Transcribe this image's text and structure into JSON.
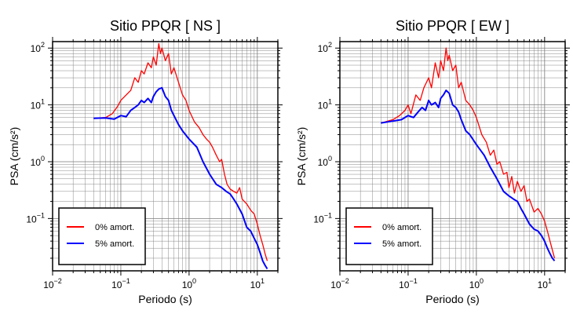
{
  "chart_data": [
    {
      "type": "line",
      "title": "Sitio PPQR [ NS ]",
      "xlabel": "Periodo (s)",
      "ylabel": "PSA (cm/s²)",
      "xscale": "log",
      "yscale": "log",
      "xlim": [
        0.01,
        20
      ],
      "ylim": [
        0.012,
        130
      ],
      "grid": true,
      "legend_position": "bottom-left",
      "x_ticks": [
        {
          "value": 0.01,
          "base": "10",
          "exp": "−2"
        },
        {
          "value": 0.1,
          "base": "10",
          "exp": "−1"
        },
        {
          "value": 1,
          "base": "10",
          "exp": "0"
        },
        {
          "value": 10,
          "base": "10",
          "exp": "1"
        }
      ],
      "y_ticks": [
        {
          "value": 0.1,
          "base": "10",
          "exp": "−1"
        },
        {
          "value": 1,
          "base": "10",
          "exp": "0"
        },
        {
          "value": 10,
          "base": "10",
          "exp": "1"
        },
        {
          "value": 100,
          "base": "10",
          "exp": "2"
        }
      ],
      "series": [
        {
          "name": "0% amort.",
          "color": "#ff0000",
          "x": [
            0.04,
            0.06,
            0.075,
            0.09,
            0.1,
            0.12,
            0.14,
            0.16,
            0.18,
            0.2,
            0.22,
            0.25,
            0.28,
            0.3,
            0.33,
            0.36,
            0.38,
            0.4,
            0.45,
            0.5,
            0.55,
            0.6,
            0.7,
            0.8,
            0.9,
            1.0,
            1.2,
            1.4,
            1.6,
            1.8,
            2.0,
            2.2,
            2.5,
            2.8,
            3.0,
            3.3,
            3.6,
            4.0,
            4.5,
            5.0,
            5.5,
            6.0,
            7.0,
            8.0,
            9.0,
            10.0,
            11.0,
            12.0,
            13.0,
            14.0
          ],
          "y": [
            5.8,
            6.0,
            7.0,
            9.5,
            12,
            15,
            18,
            30,
            25,
            40,
            35,
            55,
            45,
            70,
            50,
            120,
            80,
            100,
            60,
            80,
            35,
            45,
            25,
            15,
            12,
            8,
            5,
            4,
            3,
            2.5,
            2.2,
            1.8,
            1.3,
            1.0,
            1.1,
            0.6,
            0.4,
            0.33,
            0.3,
            0.28,
            0.35,
            0.22,
            0.18,
            0.14,
            0.12,
            0.08,
            0.05,
            0.035,
            0.024,
            0.018
          ]
        },
        {
          "name": "5% amort.",
          "color": "#0000ff",
          "x": [
            0.04,
            0.06,
            0.08,
            0.1,
            0.12,
            0.14,
            0.16,
            0.18,
            0.2,
            0.22,
            0.25,
            0.28,
            0.3,
            0.33,
            0.36,
            0.4,
            0.45,
            0.5,
            0.55,
            0.6,
            0.7,
            0.8,
            1.0,
            1.3,
            1.6,
            2.0,
            2.5,
            3.0,
            3.5,
            4.0,
            4.5,
            5.0,
            6.0,
            7.0,
            8.0,
            9.0,
            10.0,
            11.0,
            12.0,
            13.0,
            14.0
          ],
          "y": [
            5.8,
            5.9,
            5.6,
            6.5,
            6.2,
            8,
            9,
            10,
            12,
            11,
            13,
            11,
            14,
            17,
            19,
            20,
            14,
            12,
            8,
            6.5,
            4.5,
            3.5,
            2.5,
            1.8,
            1.0,
            0.6,
            0.4,
            0.35,
            0.3,
            0.27,
            0.22,
            0.18,
            0.12,
            0.07,
            0.06,
            0.045,
            0.035,
            0.025,
            0.018,
            0.015,
            0.013
          ]
        }
      ]
    },
    {
      "type": "line",
      "title": "Sitio PPQR [ EW ]",
      "xlabel": "Periodo (s)",
      "ylabel": "PSA (cm/s²)",
      "xscale": "log",
      "yscale": "log",
      "xlim": [
        0.01,
        20
      ],
      "ylim": [
        0.012,
        130
      ],
      "grid": true,
      "legend_position": "bottom-left",
      "x_ticks": [
        {
          "value": 0.01,
          "base": "10",
          "exp": "−2"
        },
        {
          "value": 0.1,
          "base": "10",
          "exp": "−1"
        },
        {
          "value": 1,
          "base": "10",
          "exp": "0"
        },
        {
          "value": 10,
          "base": "10",
          "exp": "1"
        }
      ],
      "y_ticks": [
        {
          "value": 0.1,
          "base": "10",
          "exp": "−1"
        },
        {
          "value": 1,
          "base": "10",
          "exp": "0"
        },
        {
          "value": 10,
          "base": "10",
          "exp": "1"
        },
        {
          "value": 100,
          "base": "10",
          "exp": "2"
        }
      ],
      "series": [
        {
          "name": "0% amort.",
          "color": "#ff0000",
          "x": [
            0.04,
            0.06,
            0.075,
            0.09,
            0.1,
            0.11,
            0.13,
            0.15,
            0.17,
            0.2,
            0.22,
            0.25,
            0.28,
            0.3,
            0.33,
            0.36,
            0.38,
            0.4,
            0.45,
            0.5,
            0.55,
            0.6,
            0.7,
            0.8,
            0.9,
            1.0,
            1.2,
            1.4,
            1.6,
            1.8,
            2.0,
            2.2,
            2.5,
            2.8,
            3.0,
            3.3,
            3.6,
            4.0,
            4.5,
            5.0,
            5.5,
            6.0,
            7.0,
            8.0,
            9.0,
            10.0,
            11.0,
            12.0,
            13.0,
            14.0
          ],
          "y": [
            4.8,
            5.5,
            6.5,
            8,
            10,
            7,
            15,
            12,
            20,
            30,
            20,
            55,
            30,
            60,
            40,
            100,
            60,
            75,
            40,
            50,
            20,
            25,
            12,
            10,
            8,
            6,
            3,
            2.2,
            1.3,
            1.6,
            0.9,
            1.0,
            0.6,
            0.65,
            0.35,
            0.55,
            0.28,
            0.45,
            0.3,
            0.38,
            0.2,
            0.22,
            0.13,
            0.15,
            0.12,
            0.09,
            0.06,
            0.04,
            0.028,
            0.02
          ]
        },
        {
          "name": "5% amort.",
          "color": "#0000ff",
          "x": [
            0.04,
            0.06,
            0.08,
            0.1,
            0.12,
            0.14,
            0.16,
            0.18,
            0.2,
            0.22,
            0.25,
            0.28,
            0.3,
            0.33,
            0.36,
            0.4,
            0.45,
            0.5,
            0.55,
            0.6,
            0.7,
            0.8,
            1.0,
            1.3,
            1.6,
            2.0,
            2.5,
            3.0,
            3.5,
            4.0,
            4.5,
            5.0,
            6.0,
            7.0,
            8.0,
            9.0,
            10.0,
            11.0,
            12.0,
            13.0,
            14.0
          ],
          "y": [
            4.8,
            5.2,
            5.5,
            6.5,
            6.0,
            7.5,
            9,
            8,
            12,
            10,
            11,
            9,
            13,
            15,
            18,
            16,
            10,
            9,
            7.5,
            5.5,
            3.5,
            3,
            2,
            1.3,
            0.8,
            0.5,
            0.3,
            0.25,
            0.22,
            0.2,
            0.15,
            0.12,
            0.08,
            0.065,
            0.06,
            0.05,
            0.04,
            0.03,
            0.024,
            0.02,
            0.018
          ]
        }
      ]
    }
  ]
}
